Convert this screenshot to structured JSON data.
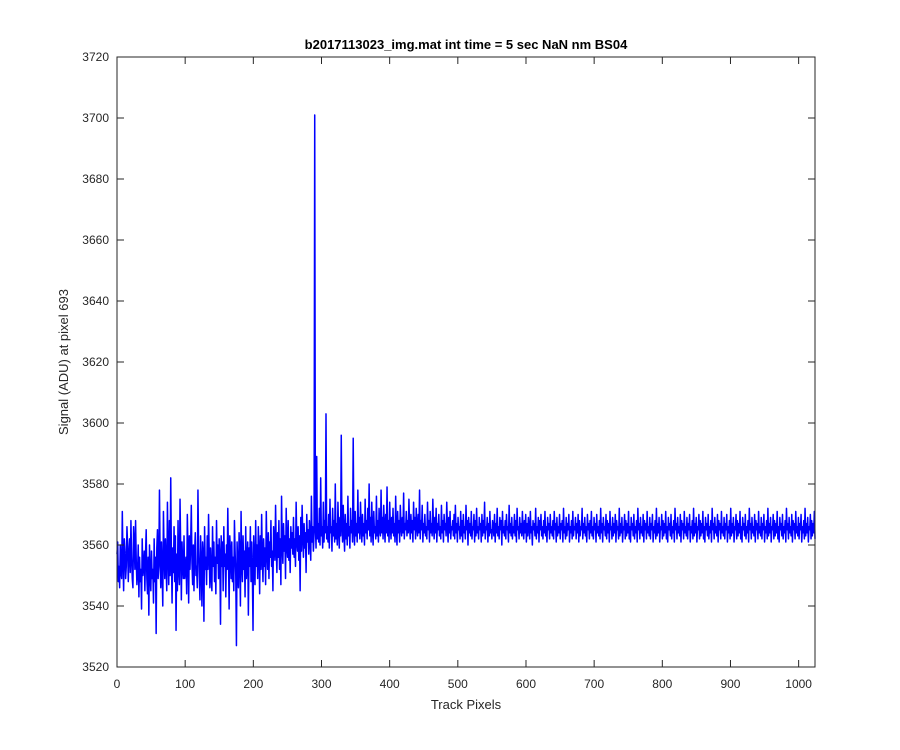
{
  "chart_data": {
    "type": "line",
    "title": "b2017113023_img.mat int time = 5 sec  NaN nm BS04",
    "xlabel": "Track Pixels",
    "ylabel": "Signal (ADU) at pixel 693",
    "xlim": [
      0,
      1024
    ],
    "ylim": [
      3520,
      3720
    ],
    "xticks": [
      0,
      100,
      200,
      300,
      400,
      500,
      600,
      700,
      800,
      900,
      1000
    ],
    "yticks": [
      3520,
      3540,
      3560,
      3580,
      3600,
      3620,
      3640,
      3660,
      3680,
      3700,
      3720
    ],
    "grid": false,
    "box": true,
    "colors": {
      "line": "#0000ff",
      "axes": "#262626",
      "background": "#ffffff"
    },
    "series": [
      {
        "values": [
          3557,
          3561,
          3548,
          3553,
          3546,
          3560,
          3551,
          3549,
          3571,
          3555,
          3545,
          3562,
          3558,
          3549,
          3553,
          3566,
          3560,
          3548,
          3557,
          3562,
          3551,
          3568,
          3556,
          3549,
          3546,
          3566,
          3561,
          3552,
          3568,
          3555,
          3547,
          3551,
          3560,
          3543,
          3556,
          3548,
          3552,
          3539,
          3562,
          3550,
          3553,
          3558,
          3545,
          3557,
          3565,
          3549,
          3544,
          3556,
          3537,
          3560,
          3551,
          3545,
          3558,
          3549,
          3552,
          3541,
          3562,
          3548,
          3556,
          3531,
          3559,
          3565,
          3549,
          3553,
          3578,
          3556,
          3546,
          3561,
          3552,
          3540,
          3571,
          3557,
          3549,
          3562,
          3553,
          3545,
          3574,
          3557,
          3547,
          3568,
          3550,
          3582,
          3556,
          3541,
          3559,
          3551,
          3566,
          3548,
          3563,
          3532,
          3557,
          3545,
          3568,
          3552,
          3547,
          3575,
          3559,
          3542,
          3561,
          3553,
          3549,
          3563,
          3549,
          3552,
          3556,
          3544,
          3570,
          3558,
          3541,
          3563,
          3552,
          3560,
          3573,
          3554,
          3547,
          3560,
          3545,
          3558,
          3564,
          3550,
          3553,
          3546,
          3578,
          3559,
          3550,
          3542,
          3563,
          3554,
          3540,
          3561,
          3557,
          3535,
          3566,
          3552,
          3556,
          3547,
          3563,
          3552,
          3570,
          3557,
          3546,
          3559,
          3550,
          3545,
          3566,
          3553,
          3561,
          3548,
          3556,
          3544,
          3568,
          3554,
          3560,
          3549,
          3562,
          3556,
          3534,
          3563,
          3553,
          3561,
          3545,
          3566,
          3553,
          3557,
          3543,
          3560,
          3552,
          3572,
          3556,
          3539,
          3563,
          3558,
          3549,
          3561,
          3548,
          3556,
          3545,
          3568,
          3558,
          3550,
          3527,
          3561,
          3553,
          3546,
          3564,
          3557,
          3540,
          3571,
          3554,
          3548,
          3563,
          3552,
          3558,
          3543,
          3566,
          3549,
          3555,
          3561,
          3537,
          3559,
          3553,
          3566,
          3548,
          3561,
          3551,
          3532,
          3563,
          3555,
          3547,
          3568,
          3553,
          3560,
          3549,
          3566,
          3558,
          3544,
          3563,
          3552,
          3570,
          3556,
          3548,
          3562,
          3553,
          3559,
          3547,
          3571,
          3558,
          3552,
          3564,
          3549,
          3561,
          3556,
          3568,
          3553,
          3558,
          3545,
          3566,
          3561,
          3555,
          3573,
          3559,
          3551,
          3564,
          3556,
          3568,
          3552,
          3562,
          3547,
          3576,
          3560,
          3554,
          3567,
          3558,
          3563,
          3549,
          3572,
          3560,
          3556,
          3568,
          3555,
          3562,
          3551,
          3566,
          3559,
          3564,
          3557,
          3569,
          3556,
          3562,
          3553,
          3574,
          3561,
          3558,
          3566,
          3555,
          3563,
          3545,
          3569,
          3558,
          3573,
          3563,
          3556,
          3567,
          3559,
          3564,
          3551,
          3570,
          3561,
          3565,
          3557,
          3568,
          3562,
          3555,
          3576,
          3561,
          3566,
          3558,
          3564,
          3701,
          3566,
          3559,
          3589,
          3562,
          3567,
          3561,
          3572,
          3560,
          3582,
          3563,
          3566,
          3559,
          3574,
          3561,
          3568,
          3564,
          3603,
          3562,
          3566,
          3561,
          3570,
          3559,
          3575,
          3564,
          3566,
          3558,
          3572,
          3563,
          3568,
          3561,
          3580,
          3562,
          3567,
          3560,
          3574,
          3565,
          3559,
          3569,
          3563,
          3596,
          3566,
          3561,
          3573,
          3564,
          3558,
          3570,
          3562,
          3567,
          3560,
          3576,
          3563,
          3566,
          3559,
          3572,
          3564,
          3568,
          3561,
          3595,
          3565,
          3560,
          3571,
          3563,
          3567,
          3561,
          3578,
          3564,
          3569,
          3562,
          3574,
          3566,
          3561,
          3570,
          3563,
          3567,
          3560,
          3575,
          3564,
          3568,
          3562,
          3572,
          3565,
          3580,
          3563,
          3569,
          3561,
          3574,
          3565,
          3560,
          3571,
          3564,
          3566,
          3562,
          3576,
          3563,
          3568,
          3561,
          3572,
          3565,
          3563,
          3578,
          3564,
          3569,
          3562,
          3573,
          3566,
          3561,
          3570,
          3564,
          3579,
          3563,
          3568,
          3561,
          3574,
          3566,
          3562,
          3569,
          3564,
          3572,
          3563,
          3567,
          3561,
          3576,
          3565,
          3560,
          3571,
          3564,
          3568,
          3561,
          3573,
          3566,
          3563,
          3569,
          3564,
          3577,
          3562,
          3567,
          3565,
          3571,
          3563,
          3568,
          3564,
          3575,
          3566,
          3562,
          3570,
          3564,
          3568,
          3561,
          3574,
          3565,
          3569,
          3562,
          3572,
          3566,
          3563,
          3570,
          3564,
          3578,
          3562,
          3568,
          3565,
          3573,
          3561,
          3567,
          3564,
          3570,
          3563,
          3566,
          3562,
          3574,
          3565,
          3568,
          3561,
          3571,
          3564,
          3567,
          3563,
          3575,
          3566,
          3562,
          3569,
          3564,
          3572,
          3561,
          3567,
          3565,
          3570,
          3563,
          3566,
          3562,
          3573,
          3564,
          3568,
          3561,
          3570,
          3565,
          3567,
          3563,
          3574,
          3566,
          3561,
          3569,
          3564,
          3571,
          3562,
          3566,
          3565,
          3568,
          3563,
          3570,
          3562,
          3573,
          3564,
          3567,
          3561,
          3569,
          3565,
          3566,
          3562,
          3571,
          3563,
          3568,
          3561,
          3570,
          3564,
          3566,
          3562,
          3573,
          3565,
          3568,
          3560,
          3569,
          3564,
          3567,
          3563,
          3571,
          3562,
          3566,
          3565,
          3570,
          3561,
          3568,
          3563,
          3572,
          3564,
          3566,
          3562,
          3569,
          3565,
          3567,
          3561,
          3570,
          3563,
          3568,
          3564,
          3574,
          3562,
          3566,
          3565,
          3569,
          3561,
          3567,
          3563,
          3571,
          3564,
          3565,
          3562,
          3568,
          3566,
          3563,
          3570,
          3561,
          3567,
          3564,
          3572,
          3563,
          3566,
          3562,
          3569,
          3565,
          3568,
          3560,
          3571,
          3564,
          3566,
          3563,
          3568,
          3562,
          3570,
          3565,
          3566,
          3561,
          3573,
          3564,
          3567,
          3563,
          3569,
          3562,
          3566,
          3564,
          3570,
          3563,
          3568,
          3561,
          3572,
          3565,
          3566,
          3562,
          3569,
          3564,
          3567,
          3563,
          3571,
          3565,
          3562,
          3568,
          3564,
          3570,
          3561,
          3567,
          3563,
          3569,
          3566,
          3562,
          3571,
          3564,
          3566,
          3560,
          3568,
          3565,
          3567,
          3563,
          3572,
          3562,
          3566,
          3564,
          3569,
          3561,
          3568,
          3565,
          3570,
          3563,
          3566,
          3562,
          3568,
          3564,
          3571,
          3563,
          3566,
          3561,
          3569,
          3565,
          3567,
          3562,
          3570,
          3564,
          3566,
          3563,
          3568,
          3562,
          3571,
          3565,
          3567,
          3561,
          3569,
          3563,
          3566,
          3564,
          3570,
          3562,
          3567,
          3565,
          3568,
          3561,
          3572,
          3564,
          3566,
          3562,
          3569,
          3563,
          3567,
          3565,
          3570,
          3561,
          3566,
          3564,
          3568,
          3562,
          3571,
          3563,
          3566,
          3565,
          3569,
          3562,
          3567,
          3564,
          3570,
          3561,
          3568,
          3563,
          3566,
          3565,
          3572,
          3562,
          3567,
          3564,
          3569,
          3563,
          3566,
          3561,
          3570,
          3565,
          3567,
          3562,
          3568,
          3564,
          3571,
          3563,
          3566,
          3562,
          3569,
          3565,
          3567,
          3561,
          3570,
          3564,
          3566,
          3563,
          3568,
          3562,
          3572,
          3564,
          3567,
          3561,
          3569,
          3565,
          3566,
          3563,
          3570,
          3562,
          3568,
          3564,
          3567,
          3561,
          3571,
          3565,
          3566,
          3562,
          3569,
          3563,
          3567,
          3564,
          3570,
          3561,
          3568,
          3565,
          3566,
          3562,
          3572,
          3563,
          3567,
          3564,
          3569,
          3561,
          3566,
          3565,
          3570,
          3562,
          3568,
          3563,
          3567,
          3564,
          3571,
          3562,
          3566,
          3561,
          3569,
          3565,
          3567,
          3563,
          3570,
          3562,
          3566,
          3564,
          3568,
          3561,
          3572,
          3565,
          3567,
          3562,
          3569,
          3564,
          3566,
          3563,
          3570,
          3561,
          3568,
          3565,
          3567,
          3562,
          3571,
          3564,
          3566,
          3563,
          3569,
          3562,
          3567,
          3565,
          3570,
          3561,
          3566,
          3564,
          3568,
          3562,
          3572,
          3563,
          3567,
          3564,
          3569,
          3561,
          3566,
          3565,
          3570,
          3562,
          3568,
          3563,
          3567,
          3564,
          3571,
          3562,
          3566,
          3561,
          3569,
          3565,
          3567,
          3563,
          3570,
          3562,
          3566,
          3564,
          3568,
          3561,
          3572,
          3565,
          3567,
          3562,
          3569,
          3564,
          3566,
          3563,
          3570,
          3561,
          3568,
          3565,
          3567,
          3562,
          3571,
          3564,
          3566,
          3563,
          3569,
          3562,
          3567,
          3565,
          3570,
          3561,
          3566,
          3564,
          3568,
          3562,
          3572,
          3563,
          3567,
          3564,
          3569,
          3561,
          3566,
          3565,
          3570,
          3562,
          3568,
          3563,
          3567,
          3564,
          3571,
          3562,
          3566,
          3561,
          3569,
          3565,
          3567,
          3563,
          3570,
          3562,
          3566,
          3564,
          3568,
          3561,
          3572,
          3565,
          3567,
          3562,
          3569,
          3564,
          3566,
          3563,
          3570,
          3561,
          3568,
          3565,
          3567,
          3562,
          3571,
          3564,
          3566,
          3563,
          3569,
          3562,
          3567,
          3565,
          3570,
          3561,
          3566,
          3564,
          3568,
          3562,
          3572,
          3563,
          3567,
          3564,
          3569,
          3561,
          3566,
          3565,
          3570,
          3562,
          3568,
          3563,
          3567,
          3564,
          3571,
          3562,
          3566,
          3561,
          3569,
          3565,
          3567,
          3563,
          3570,
          3562,
          3566,
          3564,
          3568,
          3561,
          3572,
          3565,
          3567,
          3562,
          3569,
          3564,
          3566,
          3563,
          3570,
          3561,
          3568,
          3565,
          3567,
          3562,
          3571,
          3564,
          3566,
          3563,
          3569,
          3562,
          3567,
          3565,
          3570,
          3561,
          3566,
          3564,
          3568,
          3562,
          3572,
          3563,
          3567,
          3564,
          3569,
          3561,
          3566,
          3565,
          3570,
          3562,
          3568,
          3563,
          3567,
          3564,
          3571,
          3562,
          3566,
          3561,
          3569,
          3565,
          3567,
          3563,
          3570,
          3562,
          3566,
          3564,
          3568,
          3561,
          3572,
          3565,
          3567,
          3562,
          3569,
          3564,
          3566,
          3563,
          3570,
          3561,
          3568,
          3565,
          3567,
          3562,
          3571,
          3564,
          3566,
          3563,
          3569,
          3562,
          3567,
          3565,
          3570,
          3561,
          3566,
          3564,
          3568,
          3562,
          3572,
          3563,
          3567,
          3564,
          3569,
          3561,
          3566,
          3565,
          3570,
          3562,
          3568,
          3563,
          3567,
          3564,
          3571,
          3562
        ]
      }
    ]
  }
}
